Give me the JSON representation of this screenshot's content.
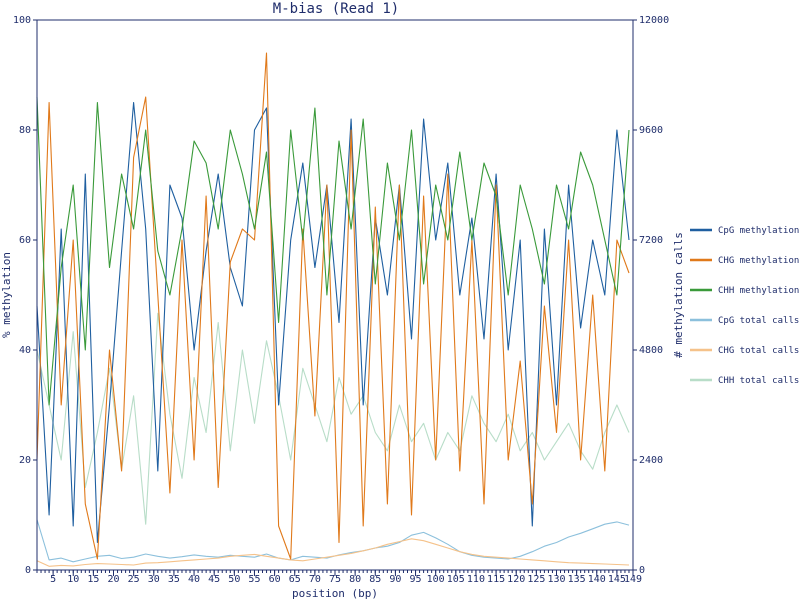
{
  "chart_data": {
    "type": "line",
    "title": "M-bias (Read 1)",
    "xlabel": "position (bp)",
    "ylabel": "% methylation",
    "y2label": "# methylation calls",
    "xlim": [
      1,
      149
    ],
    "ylim": [
      0,
      100
    ],
    "y2lim": [
      0,
      12000
    ],
    "x_ticks": [
      5,
      10,
      15,
      20,
      25,
      30,
      35,
      40,
      45,
      50,
      55,
      60,
      65,
      70,
      75,
      80,
      85,
      90,
      95,
      100,
      105,
      110,
      115,
      120,
      125,
      130,
      135,
      140,
      145,
      149
    ],
    "y_ticks": [
      0,
      20,
      40,
      60,
      80,
      100
    ],
    "y2_ticks": [
      0,
      2400,
      4800,
      7200,
      9600,
      12000
    ],
    "x_positions": [
      1,
      4,
      7,
      10,
      13,
      16,
      19,
      22,
      25,
      28,
      31,
      34,
      37,
      40,
      43,
      46,
      49,
      52,
      55,
      58,
      61,
      64,
      67,
      70,
      73,
      76,
      79,
      82,
      85,
      88,
      91,
      94,
      97,
      100,
      103,
      106,
      109,
      112,
      115,
      118,
      121,
      124,
      127,
      130,
      133,
      136,
      139,
      142,
      145,
      148
    ],
    "legend_position": "right",
    "series": [
      {
        "name": "CpG methylation",
        "axis": "left",
        "color": "#1f5fa0",
        "values": [
          48,
          10,
          62,
          8,
          72,
          5,
          30,
          58,
          85,
          62,
          18,
          70,
          64,
          40,
          58,
          72,
          55,
          48,
          80,
          84,
          30,
          60,
          74,
          55,
          70,
          45,
          82,
          30,
          64,
          50,
          70,
          42,
          82,
          60,
          74,
          50,
          64,
          42,
          72,
          40,
          60,
          8,
          62,
          30,
          70,
          44,
          60,
          50,
          80,
          60
        ]
      },
      {
        "name": "CHG methylation",
        "axis": "left",
        "color": "#e0791a",
        "values": [
          20,
          85,
          30,
          60,
          12,
          2,
          40,
          18,
          75,
          86,
          50,
          14,
          60,
          20,
          68,
          15,
          56,
          62,
          60,
          94,
          8,
          2,
          62,
          28,
          70,
          5,
          80,
          8,
          66,
          12,
          70,
          10,
          68,
          20,
          72,
          18,
          60,
          12,
          70,
          20,
          38,
          12,
          48,
          25,
          60,
          20,
          50,
          18,
          60,
          54
        ]
      },
      {
        "name": "CHH methylation",
        "axis": "left",
        "color": "#3a9a3a",
        "values": [
          86,
          30,
          55,
          70,
          40,
          85,
          55,
          72,
          62,
          80,
          58,
          50,
          62,
          78,
          74,
          62,
          80,
          72,
          62,
          76,
          45,
          80,
          60,
          84,
          50,
          78,
          62,
          82,
          52,
          74,
          60,
          80,
          52,
          70,
          60,
          76,
          60,
          74,
          68,
          50,
          70,
          62,
          52,
          70,
          62,
          76,
          70,
          60,
          50,
          80
        ]
      },
      {
        "name": "CpG total calls",
        "axis": "right",
        "color": "#8cc0dc",
        "values": [
          1100,
          220,
          260,
          180,
          240,
          300,
          320,
          250,
          280,
          350,
          300,
          260,
          290,
          330,
          300,
          280,
          320,
          300,
          280,
          350,
          260,
          220,
          300,
          280,
          260,
          330,
          380,
          420,
          480,
          520,
          600,
          760,
          820,
          700,
          560,
          400,
          320,
          280,
          260,
          240,
          300,
          400,
          520,
          600,
          720,
          800,
          900,
          1000,
          1050,
          980
        ]
      },
      {
        "name": "CHG total calls",
        "axis": "right",
        "color": "#f5c28a",
        "values": [
          200,
          80,
          100,
          90,
          120,
          140,
          130,
          120,
          110,
          150,
          160,
          180,
          200,
          220,
          240,
          260,
          300,
          320,
          340,
          300,
          260,
          220,
          200,
          240,
          280,
          320,
          360,
          420,
          480,
          560,
          620,
          680,
          640,
          560,
          480,
          400,
          340,
          300,
          280,
          260,
          240,
          220,
          200,
          180,
          160,
          150,
          140,
          130,
          120,
          110
        ]
      },
      {
        "name": "CHH total calls",
        "axis": "right",
        "color": "#b8ddc8",
        "values": [
          4800,
          3600,
          2400,
          5200,
          1800,
          3000,
          4400,
          2200,
          3800,
          1000,
          5600,
          3400,
          2000,
          4200,
          3000,
          5400,
          2600,
          4800,
          3200,
          5000,
          3800,
          2400,
          4400,
          3600,
          2800,
          4200,
          3400,
          3800,
          3000,
          2600,
          3600,
          2800,
          3200,
          2400,
          3000,
          2600,
          3800,
          3200,
          2800,
          3400,
          2600,
          3000,
          2400,
          2800,
          3200,
          2600,
          2200,
          3000,
          3600,
          3000
        ]
      }
    ]
  }
}
